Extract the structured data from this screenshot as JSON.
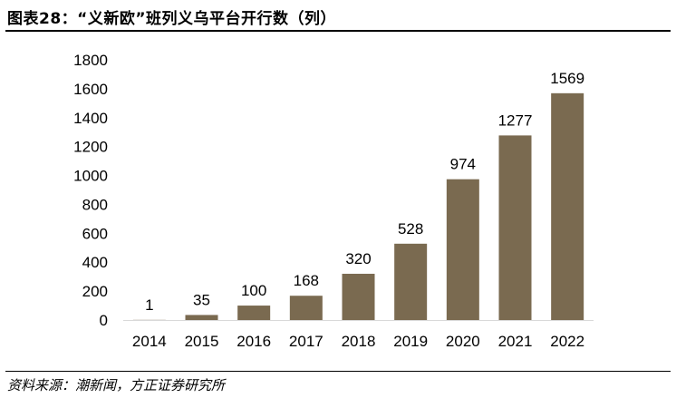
{
  "figure": {
    "title": "图表28：“义新欧”班列义乌平台开行数（列）",
    "source": "资料来源：潮新闻，方正证券研究所"
  },
  "chart_data": {
    "type": "bar",
    "title": "图表28：“义新欧”班列义乌平台开行数（列）",
    "xlabel": "",
    "ylabel": "",
    "categories": [
      "2014",
      "2015",
      "2016",
      "2017",
      "2018",
      "2019",
      "2020",
      "2021",
      "2022"
    ],
    "series": [
      {
        "values": [
          1,
          35,
          100,
          168,
          320,
          528,
          974,
          1277,
          1569
        ]
      }
    ],
    "ylim": [
      0,
      1800
    ],
    "yticks": [
      0,
      200,
      400,
      600,
      800,
      1000,
      1200,
      1400,
      1600,
      1800
    ],
    "grid": false,
    "legend": "none",
    "bar_color": "#7a6a50",
    "axis_color": "#d9d9d9"
  }
}
